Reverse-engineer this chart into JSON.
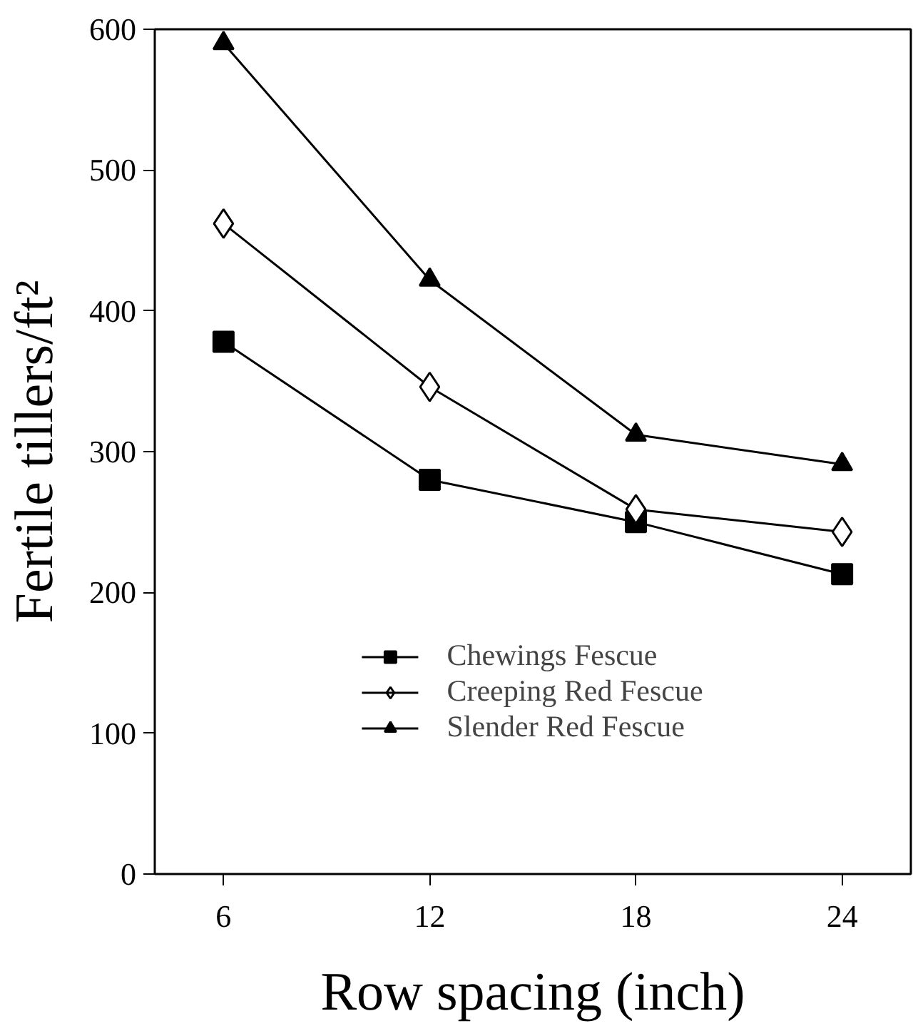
{
  "chart_data": {
    "type": "line",
    "xlabel": "Row spacing (inch)",
    "ylabel": "Fertile tillers/ft²",
    "x": [
      6,
      12,
      18,
      24
    ],
    "series": [
      {
        "name": "Chewings Fescue",
        "color": "#000000",
        "marker": "square",
        "values": [
          378,
          280,
          250,
          213
        ]
      },
      {
        "name": "Creeping Red Fescue",
        "color": "#000000",
        "marker": "diamond",
        "values": [
          462,
          346,
          259,
          243
        ]
      },
      {
        "name": "Slender Red Fescue",
        "color": "#000000",
        "marker": "triangle",
        "values": [
          590,
          422,
          312,
          291
        ]
      }
    ],
    "xlim": [
      4,
      26
    ],
    "xticks": [
      6,
      12,
      18,
      24
    ],
    "ylim": [
      0,
      600
    ],
    "yticks": [
      0,
      100,
      200,
      300,
      400,
      500,
      600
    ],
    "grid": false,
    "legend": "bottom",
    "line_style": "solid"
  }
}
